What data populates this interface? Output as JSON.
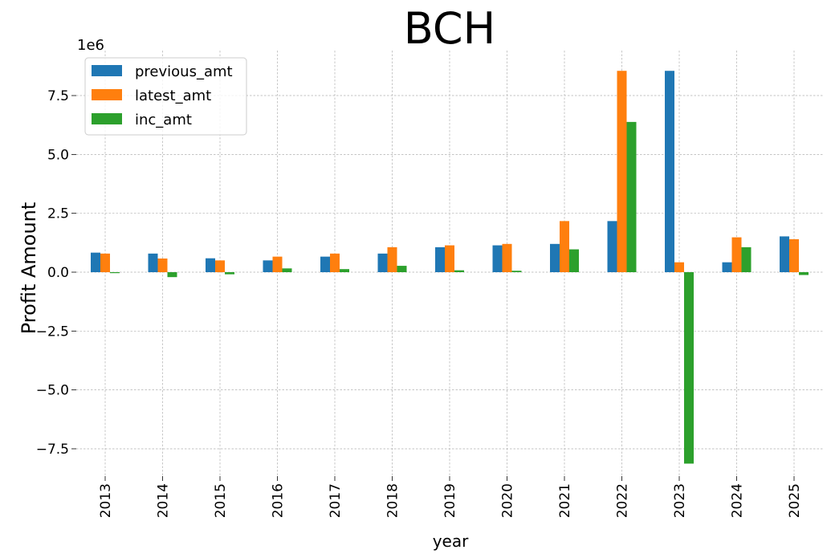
{
  "chart_data": {
    "type": "bar",
    "title": "BCH",
    "xlabel": "year",
    "ylabel": "Profit Amount",
    "y_offset_label": "1e6",
    "ylim": [
      -9.0,
      9.4
    ],
    "y_ticks": [
      -7.5,
      -5.0,
      -2.5,
      0.0,
      2.5,
      5.0,
      7.5
    ],
    "y_tick_labels": [
      "−7.5",
      "−5.0",
      "−2.5",
      "0.0",
      "2.5",
      "5.0",
      "7.5"
    ],
    "y_unit_multiplier": 1000000,
    "grid": true,
    "legend_position": "top-left",
    "categories": [
      "2013",
      "2014",
      "2015",
      "2016",
      "2017",
      "2018",
      "2019",
      "2020",
      "2021",
      "2022",
      "2023",
      "2024",
      "2025"
    ],
    "series": [
      {
        "name": "previous_amt",
        "color": "#1f77b4",
        "values": [
          0.83,
          0.79,
          0.59,
          0.5,
          0.66,
          0.79,
          1.06,
          1.14,
          1.2,
          2.17,
          8.55,
          0.42,
          1.52
        ]
      },
      {
        "name": "latest_amt",
        "color": "#ff7f0e",
        "values": [
          0.79,
          0.58,
          0.5,
          0.66,
          0.79,
          1.06,
          1.14,
          1.2,
          2.17,
          8.55,
          0.42,
          1.48,
          1.4
        ]
      },
      {
        "name": "inc_amt",
        "color": "#2ca02c",
        "values": [
          -0.04,
          -0.21,
          -0.09,
          0.16,
          0.13,
          0.27,
          0.08,
          0.06,
          0.97,
          6.38,
          -8.13,
          1.06,
          -0.12
        ]
      }
    ]
  }
}
